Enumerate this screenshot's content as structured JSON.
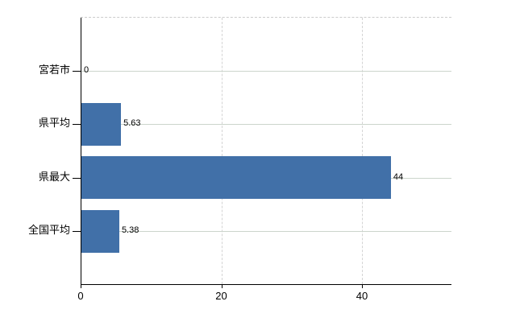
{
  "chart_data": {
    "type": "bar",
    "orientation": "horizontal",
    "title": "",
    "xlabel": "",
    "ylabel": "",
    "categories": [
      "宮若市",
      "県平均",
      "県最大",
      "全国平均"
    ],
    "values": [
      0,
      5.63,
      44,
      5.38
    ],
    "value_labels": [
      "0",
      "5.63",
      "44",
      "5.38"
    ],
    "x_ticks": [
      0,
      20,
      40
    ],
    "x_tick_labels": [
      "0",
      "20",
      "40"
    ],
    "xlim": [
      0,
      52.8
    ],
    "grid": true,
    "legend": false,
    "colors": {
      "bar": "#4170a8",
      "axis": "#000000",
      "horizontal_grid": "#ccd5cc",
      "vertical_grid": "#d4d4d4",
      "top_border": "#cccccc",
      "text": "#000000"
    },
    "top_border_style": "dashed"
  }
}
